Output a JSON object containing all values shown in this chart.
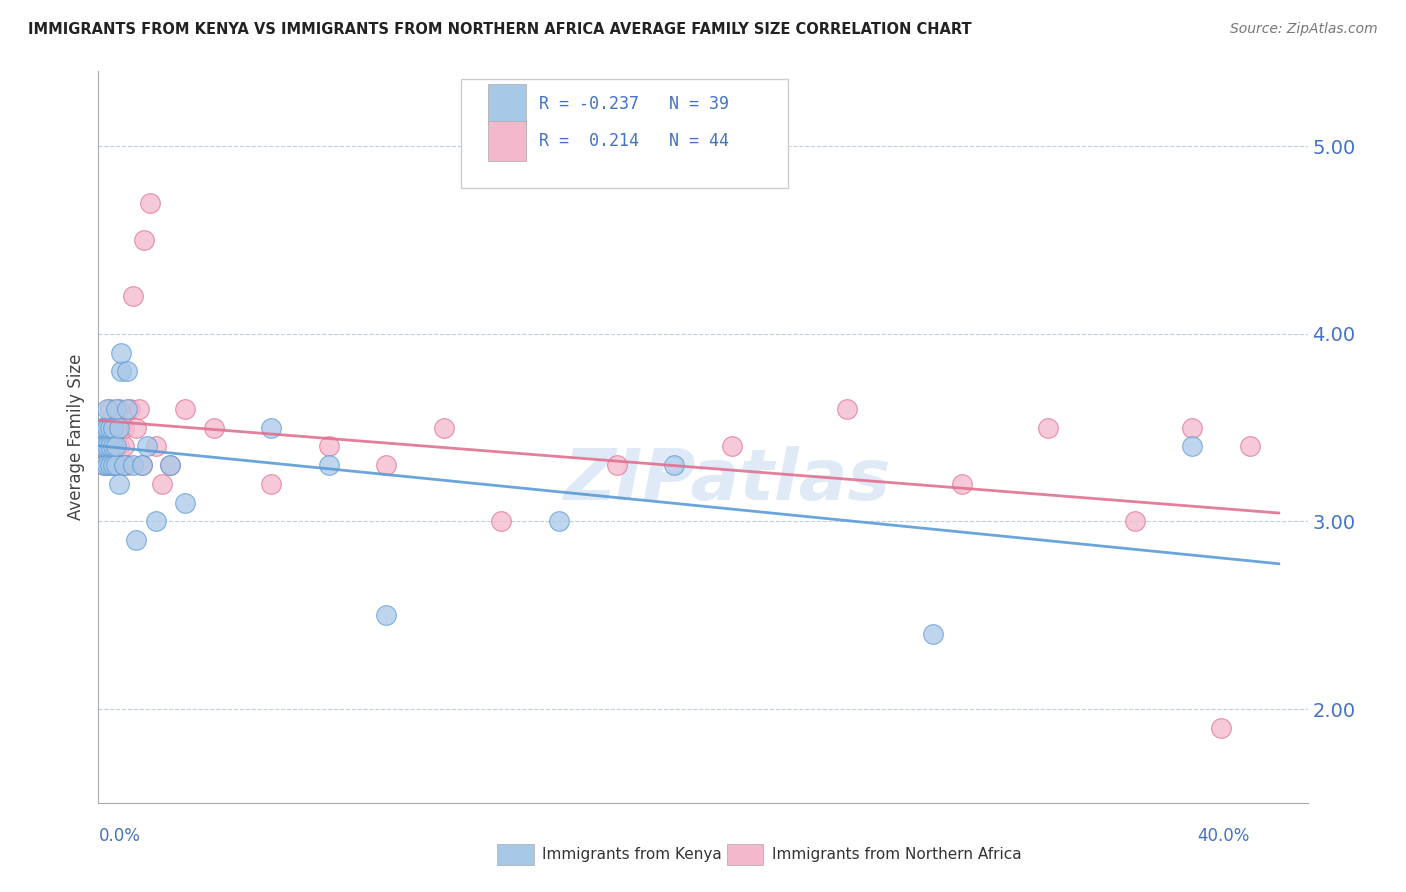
{
  "title": "IMMIGRANTS FROM KENYA VS IMMIGRANTS FROM NORTHERN AFRICA AVERAGE FAMILY SIZE CORRELATION CHART",
  "source": "Source: ZipAtlas.com",
  "ylabel": "Average Family Size",
  "legend_label1": "Immigrants from Kenya",
  "legend_label2": "Immigrants from Northern Africa",
  "R1": -0.237,
  "N1": 39,
  "R2": 0.214,
  "N2": 44,
  "ylim": [
    1.5,
    5.4
  ],
  "yticks_right": [
    2.0,
    3.0,
    4.0,
    5.0
  ],
  "xlim": [
    0.0,
    0.42
  ],
  "color_kenya": "#a8c8e8",
  "color_kenya_line": "#5b9bd5",
  "color_nafr": "#f4b8cc",
  "color_nafr_line": "#e07090",
  "color_text_blue": "#4472c4",
  "background_color": "#ffffff",
  "kenya_x": [
    0.001,
    0.001,
    0.002,
    0.002,
    0.002,
    0.003,
    0.003,
    0.003,
    0.003,
    0.004,
    0.004,
    0.004,
    0.005,
    0.005,
    0.005,
    0.006,
    0.006,
    0.006,
    0.007,
    0.007,
    0.008,
    0.008,
    0.009,
    0.01,
    0.01,
    0.012,
    0.013,
    0.015,
    0.017,
    0.02,
    0.025,
    0.03,
    0.06,
    0.08,
    0.1,
    0.16,
    0.2,
    0.29,
    0.38
  ],
  "kenya_y": [
    3.4,
    3.5,
    3.5,
    3.3,
    3.4,
    3.5,
    3.4,
    3.3,
    3.6,
    3.3,
    3.4,
    3.5,
    3.3,
    3.4,
    3.5,
    3.3,
    3.4,
    3.6,
    3.2,
    3.5,
    3.8,
    3.9,
    3.3,
    3.6,
    3.8,
    3.3,
    2.9,
    3.3,
    3.4,
    3.0,
    3.3,
    3.1,
    3.5,
    3.3,
    2.5,
    3.0,
    3.3,
    2.4,
    3.4
  ],
  "nafr_x": [
    0.001,
    0.002,
    0.002,
    0.003,
    0.003,
    0.004,
    0.004,
    0.005,
    0.005,
    0.006,
    0.006,
    0.007,
    0.007,
    0.008,
    0.008,
    0.009,
    0.009,
    0.01,
    0.011,
    0.012,
    0.013,
    0.014,
    0.015,
    0.016,
    0.018,
    0.02,
    0.022,
    0.025,
    0.03,
    0.04,
    0.06,
    0.08,
    0.1,
    0.12,
    0.14,
    0.18,
    0.22,
    0.26,
    0.3,
    0.33,
    0.36,
    0.38,
    0.39,
    0.4
  ],
  "nafr_y": [
    3.4,
    3.3,
    3.5,
    3.4,
    3.5,
    3.3,
    3.6,
    3.4,
    3.5,
    3.3,
    3.5,
    3.4,
    3.6,
    3.3,
    3.5,
    3.4,
    3.5,
    3.3,
    3.6,
    4.2,
    3.5,
    3.6,
    3.3,
    4.5,
    4.7,
    3.4,
    3.2,
    3.3,
    3.6,
    3.5,
    3.2,
    3.4,
    3.3,
    3.5,
    3.0,
    3.3,
    3.4,
    3.6,
    3.2,
    3.5,
    3.0,
    3.5,
    1.9,
    3.4
  ]
}
